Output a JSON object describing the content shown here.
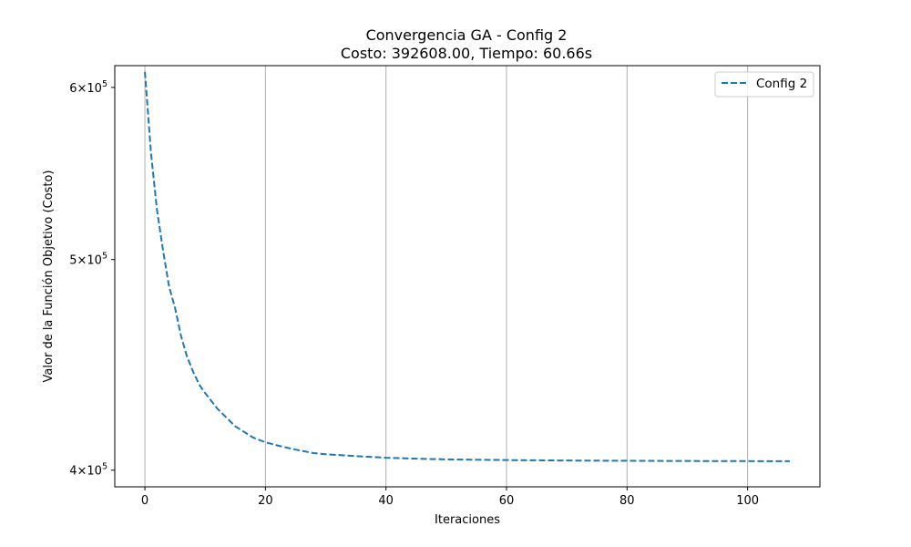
{
  "chart_data": {
    "type": "line",
    "title": "Convergencia GA - Config 2",
    "subtitle": "Costo: 392608.00, Tiempo: 60.66s",
    "xlabel": "Iteraciones",
    "ylabel": "Valor de la Función Objetivo (Costo)",
    "xlim": [
      -5,
      112
    ],
    "ylim": [
      393000,
      614000
    ],
    "y_scale": "log",
    "grid": "x-only",
    "legend_position": "top-right",
    "x_ticks": [
      0,
      20,
      40,
      60,
      80,
      100
    ],
    "x_tick_labels": [
      "0",
      "20",
      "40",
      "60",
      "80",
      "100"
    ],
    "y_ticks": [
      400000,
      500000,
      600000
    ],
    "y_tick_labels": [
      {
        "mantissa": "4",
        "base": "10",
        "exp": "5"
      },
      {
        "mantissa": "5",
        "base": "10",
        "exp": "5"
      },
      {
        "mantissa": "6",
        "base": "10",
        "exp": "5"
      }
    ],
    "series": [
      {
        "name": "Config 2",
        "color": "#1f77b4",
        "style": "dashed",
        "x": [
          0,
          1,
          2,
          3,
          4,
          5,
          6,
          7,
          8,
          9,
          10,
          12,
          15,
          18,
          20,
          22,
          25,
          28,
          30,
          35,
          40,
          45,
          50,
          60,
          70,
          80,
          90,
          100,
          107
        ],
        "y": [
          610000,
          560000,
          527000,
          505000,
          486000,
          475000,
          461000,
          451000,
          444000,
          438000,
          434000,
          427000,
          419000,
          414000,
          412000,
          410600,
          408800,
          407300,
          406800,
          406000,
          405300,
          404900,
          404600,
          404300,
          404100,
          404000,
          403900,
          403850,
          403800
        ]
      }
    ]
  }
}
